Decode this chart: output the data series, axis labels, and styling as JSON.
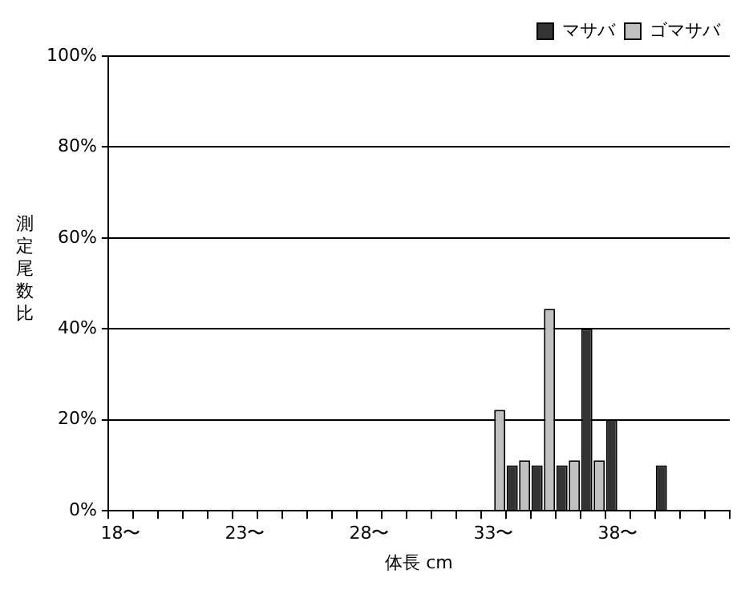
{
  "chart_data": {
    "type": "bar",
    "xlabel": "体長 cm",
    "ylabel": "測定尾数比",
    "categories": [
      "18〜",
      null,
      null,
      null,
      null,
      "23〜",
      null,
      null,
      null,
      null,
      "28〜",
      null,
      null,
      null,
      null,
      "33〜",
      null,
      null,
      null,
      null,
      "38〜",
      null,
      null,
      null,
      null
    ],
    "series": [
      {
        "name": "マサバ",
        "color": "#333333",
        "values": [
          null,
          null,
          null,
          null,
          null,
          null,
          null,
          null,
          null,
          null,
          null,
          null,
          null,
          null,
          null,
          null,
          10,
          10,
          10,
          40,
          20,
          null,
          10,
          null,
          null
        ]
      },
      {
        "name": "ゴマサバ",
        "color": "#c0c0c0",
        "values": [
          null,
          null,
          null,
          null,
          null,
          null,
          null,
          null,
          null,
          null,
          null,
          null,
          null,
          null,
          null,
          22.2,
          11.1,
          44.4,
          11.1,
          11.1,
          null,
          null,
          null,
          null,
          null
        ]
      }
    ],
    "ylim": [
      0,
      100
    ],
    "yticks": [
      {
        "value": 0,
        "label": "0%"
      },
      {
        "value": 20,
        "label": "20%"
      },
      {
        "value": 40,
        "label": "40%"
      },
      {
        "value": 60,
        "label": "60%"
      },
      {
        "value": 80,
        "label": "80%"
      },
      {
        "value": 100,
        "label": "100%"
      }
    ],
    "grid": "y",
    "legend": "top right"
  }
}
